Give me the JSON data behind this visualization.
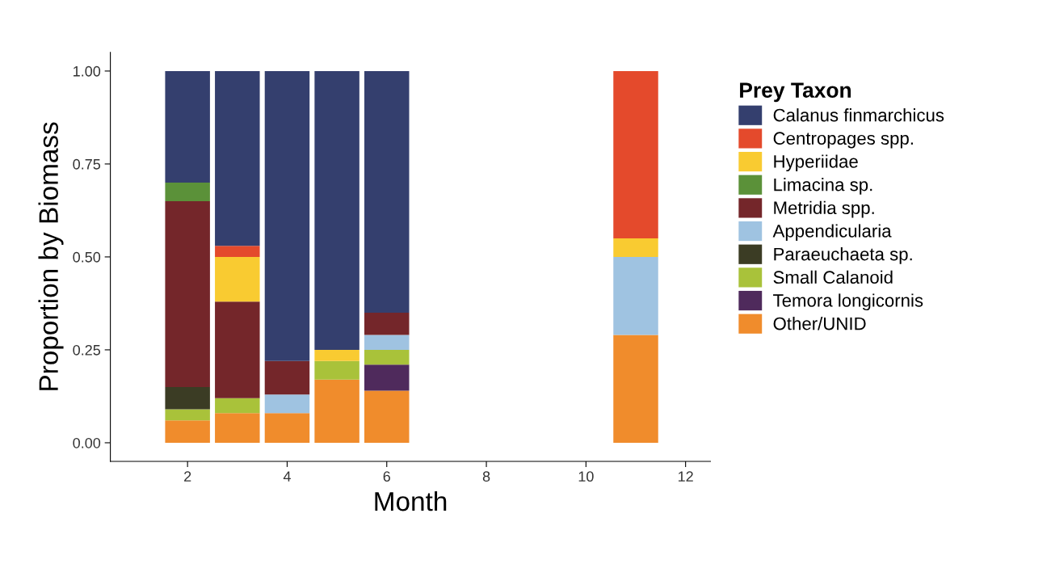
{
  "chart_data": {
    "type": "bar",
    "stacked": true,
    "xlabel": "Month",
    "ylabel": "Proportion by Biomass",
    "legend_title": "Prey Taxon",
    "legend": "right",
    "grid": false,
    "x": [
      2,
      3,
      4,
      5,
      6,
      11
    ],
    "xlim": [
      0.45,
      12.5
    ],
    "xticks": [
      2,
      4,
      6,
      8,
      10,
      12
    ],
    "ylim": [
      -0.05,
      1.05
    ],
    "yticks": [
      {
        "value": 0,
        "label": "0.00"
      },
      {
        "value": 0.25,
        "label": "0.25"
      },
      {
        "value": 0.5,
        "label": "0.50"
      },
      {
        "value": 0.75,
        "label": "0.75"
      },
      {
        "value": 1,
        "label": "1.00"
      }
    ],
    "series": [
      {
        "name": "Other/UNID",
        "color": "#f08c2c",
        "values": [
          0.06,
          0.08,
          0.08,
          0.17,
          0.14,
          0.29
        ]
      },
      {
        "name": "Temora longicornis",
        "color": "#4f2a5c",
        "values": [
          null,
          null,
          null,
          null,
          0.07,
          null
        ]
      },
      {
        "name": "Small Calanoid",
        "color": "#a9c23a",
        "values": [
          0.03,
          0.04,
          null,
          0.05,
          0.04,
          null
        ]
      },
      {
        "name": "Paraeuchaeta sp.",
        "color": "#3b3c24",
        "values": [
          0.06,
          null,
          null,
          null,
          null,
          null
        ]
      },
      {
        "name": "Appendicularia",
        "color": "#9fc3e1",
        "values": [
          null,
          null,
          0.05,
          null,
          0.04,
          0.21
        ]
      },
      {
        "name": "Metridia spp.",
        "color": "#74262a",
        "values": [
          0.5,
          0.26,
          0.09,
          null,
          0.06,
          null
        ]
      },
      {
        "name": "Limacina sp.",
        "color": "#5b9139",
        "values": [
          0.05,
          null,
          null,
          null,
          null,
          null
        ]
      },
      {
        "name": "Hyperiidae",
        "color": "#f9cb31",
        "values": [
          null,
          0.12,
          null,
          0.03,
          null,
          0.05
        ]
      },
      {
        "name": "Centropages spp.",
        "color": "#e44a2c",
        "values": [
          null,
          0.03,
          null,
          null,
          null,
          0.45
        ]
      },
      {
        "name": "Calanus finmarchicus",
        "color": "#343f6e",
        "values": [
          0.3,
          0.47,
          0.78,
          0.75,
          0.65,
          null
        ]
      }
    ]
  }
}
